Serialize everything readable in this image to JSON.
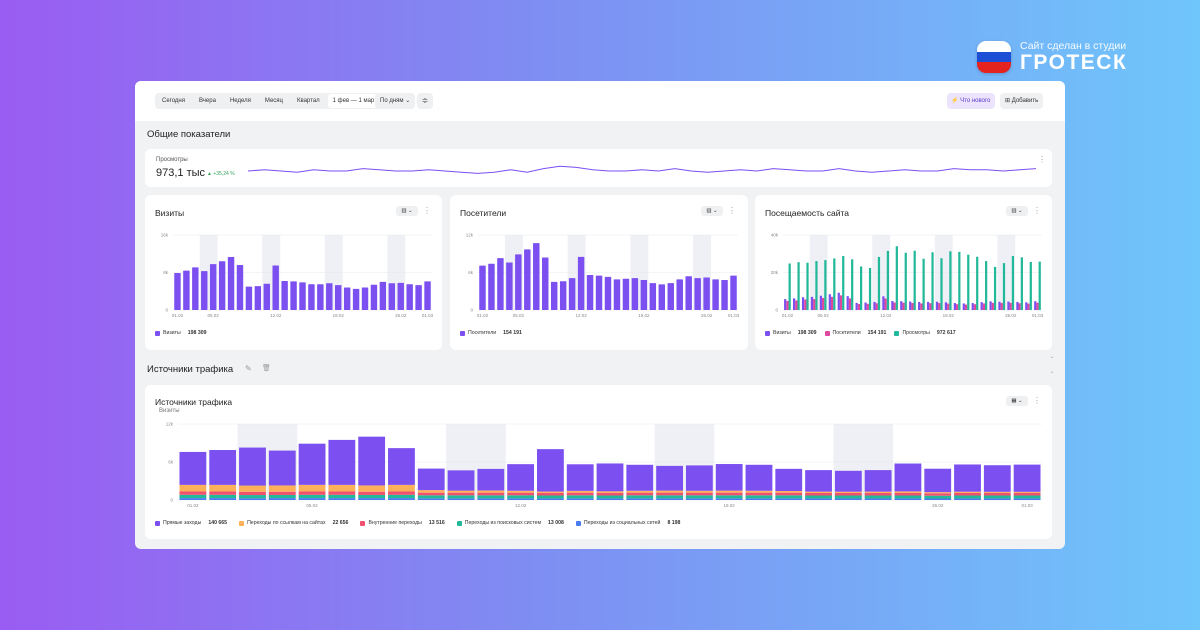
{
  "brand": {
    "subtitle": "Сайт сделан в студии",
    "name": "ГРОТЕСК",
    "flag_colors": [
      "#ffffff",
      "#1d4fd6",
      "#e4231f"
    ]
  },
  "toolbar": {
    "periods": [
      "Сегодня",
      "Вчера",
      "Неделя",
      "Месяц",
      "Квартал"
    ],
    "date_range": "1 фев — 1 мар",
    "grouping": "По дням",
    "settings_icon": "sliders-icon",
    "whats_new_label": "Что нового",
    "whats_new_icon": "lightning-icon",
    "add_label": "Добавить",
    "add_icon": "grid-icon"
  },
  "overview": {
    "title": "Общие показатели",
    "views": {
      "label": "Просмотры",
      "value": "973,1 тыс",
      "delta": "▲ +35,24 %"
    }
  },
  "colors": {
    "purple": "#7b4ff0",
    "magenta": "#e0479e",
    "teal": "#22b89a",
    "orange": "#ffb05a",
    "red": "#f0516e",
    "blue": "#4b7bf0",
    "weekend": "#eef0f5"
  },
  "sparkline": [
    30,
    31,
    30,
    29,
    31,
    30,
    30,
    32,
    31,
    30,
    30,
    31,
    30,
    29,
    28,
    29,
    31,
    29,
    32,
    34,
    33,
    31,
    30,
    30,
    31,
    30,
    32,
    30,
    29,
    30,
    31,
    30,
    32,
    31,
    30,
    30,
    32,
    30,
    29,
    30,
    31,
    30,
    30,
    32,
    31,
    31,
    30,
    31,
    32
  ],
  "sources_section": {
    "title": "Источники трафика",
    "edit_icon": "pencil-icon",
    "delete_icon": "trash-icon"
  },
  "chart_data": [
    {
      "type": "bar",
      "title": "Визиты",
      "x": [
        "01.02",
        "02.02",
        "03.02",
        "04.02",
        "05.02",
        "06.02",
        "07.02",
        "08.02",
        "09.02",
        "10.02",
        "11.02",
        "12.02",
        "13.02",
        "14.02",
        "15.02",
        "16.02",
        "17.02",
        "18.02",
        "19.02",
        "20.02",
        "21.02",
        "22.02",
        "23.02",
        "24.02",
        "25.02",
        "26.02",
        "27.02",
        "28.02",
        "01.03"
      ],
      "x_ticks": [
        "01.02",
        "05.02",
        "12.02",
        "19.02",
        "26.02",
        "01.03"
      ],
      "y_ticks": [
        "0",
        "8k",
        "16k"
      ],
      "ylim": [
        0,
        16000
      ],
      "series": [
        {
          "name": "Визиты",
          "values": [
            7900,
            8400,
            9100,
            8300,
            9800,
            10400,
            11300,
            9600,
            5000,
            5100,
            5600,
            9500,
            6200,
            6100,
            5900,
            5500,
            5500,
            5700,
            5300,
            4800,
            4500,
            4800,
            5400,
            6000,
            5700,
            5800,
            5500,
            5300,
            6100
          ]
        }
      ],
      "legend": [
        {
          "name": "Визиты",
          "total": "198 309"
        }
      ],
      "weekends": [
        [
          3,
          4
        ],
        [
          10,
          11
        ],
        [
          17,
          18
        ],
        [
          24,
          25
        ]
      ]
    },
    {
      "type": "bar",
      "title": "Посетители",
      "x": [
        "01.02",
        "02.02",
        "03.02",
        "04.02",
        "05.02",
        "06.02",
        "07.02",
        "08.02",
        "09.02",
        "10.02",
        "11.02",
        "12.02",
        "13.02",
        "14.02",
        "15.02",
        "16.02",
        "17.02",
        "18.02",
        "19.02",
        "20.02",
        "21.02",
        "22.02",
        "23.02",
        "24.02",
        "25.02",
        "26.02",
        "27.02",
        "28.02",
        "01.03"
      ],
      "x_ticks": [
        "01.02",
        "05.02",
        "12.02",
        "19.02",
        "26.02",
        "01.03"
      ],
      "y_ticks": [
        "0",
        "6k",
        "12k"
      ],
      "ylim": [
        0,
        12000
      ],
      "series": [
        {
          "name": "Посетители",
          "values": [
            7100,
            7400,
            8300,
            7600,
            8900,
            9700,
            10700,
            8400,
            4500,
            4600,
            5100,
            8500,
            5600,
            5500,
            5300,
            4900,
            5000,
            5100,
            4800,
            4300,
            4100,
            4300,
            4900,
            5400,
            5100,
            5200,
            4900,
            4800,
            5500
          ]
        }
      ],
      "legend": [
        {
          "name": "Посетители",
          "total": "154 191"
        }
      ],
      "weekends": [
        [
          3,
          4
        ],
        [
          10,
          11
        ],
        [
          17,
          18
        ],
        [
          24,
          25
        ]
      ]
    },
    {
      "type": "bar",
      "title": "Посещаемость сайта",
      "x": [
        "01.02",
        "02.02",
        "03.02",
        "04.02",
        "05.02",
        "06.02",
        "07.02",
        "08.02",
        "09.02",
        "10.02",
        "11.02",
        "12.02",
        "13.02",
        "14.02",
        "15.02",
        "16.02",
        "17.02",
        "18.02",
        "19.02",
        "20.02",
        "21.02",
        "22.02",
        "23.02",
        "24.02",
        "25.02",
        "26.02",
        "27.02",
        "28.02",
        "01.03"
      ],
      "x_ticks": [
        "01.02",
        "05.02",
        "12.02",
        "19.02",
        "26.02",
        "01.03"
      ],
      "y_ticks": [
        "0",
        "20k",
        "40k"
      ],
      "ylim": [
        0,
        40000
      ],
      "series": [
        {
          "name": "Визиты",
          "values": [
            5800,
            6200,
            6800,
            7000,
            7600,
            8400,
            9200,
            7400,
            3800,
            4000,
            4300,
            7300,
            4800,
            4700,
            4500,
            4300,
            4300,
            4400,
            4100,
            3700,
            3500,
            3700,
            4200,
            4600,
            4400,
            4500,
            4300,
            4100,
            4700
          ]
        },
        {
          "name": "Посетители",
          "values": [
            4800,
            5100,
            5600,
            5800,
            6400,
            7000,
            7800,
            6200,
            3200,
            3300,
            3600,
            6100,
            4000,
            3900,
            3700,
            3500,
            3600,
            3700,
            3400,
            3100,
            2900,
            3100,
            3500,
            3800,
            3700,
            3800,
            3600,
            3400,
            3900
          ]
        },
        {
          "name": "Просмотры",
          "values": [
            24800,
            25500,
            25200,
            26100,
            26600,
            27500,
            28800,
            27000,
            23200,
            22400,
            28300,
            31500,
            34000,
            30500,
            31600,
            27300,
            30800,
            27600,
            31300,
            31000,
            29500,
            28400,
            26100,
            23000,
            25000,
            28800,
            28100,
            25600,
            25800
          ]
        }
      ],
      "legend": [
        {
          "name": "Визиты",
          "total": "198 309"
        },
        {
          "name": "Посетители",
          "total": "154 191"
        },
        {
          "name": "Просмотры",
          "total": "972 617"
        }
      ],
      "weekends": [
        [
          3,
          4
        ],
        [
          10,
          11
        ],
        [
          17,
          18
        ],
        [
          24,
          25
        ]
      ]
    },
    {
      "type": "bar",
      "title": "Источники трафика",
      "subtitle": "Визиты",
      "stacked": true,
      "x": [
        "01.02",
        "02.02",
        "03.02",
        "04.02",
        "05.02",
        "06.02",
        "07.02",
        "08.02",
        "09.02",
        "10.02",
        "11.02",
        "12.02",
        "13.02",
        "14.02",
        "15.02",
        "16.02",
        "17.02",
        "18.02",
        "19.02",
        "20.02",
        "21.02",
        "22.02",
        "23.02",
        "24.02",
        "25.02",
        "26.02",
        "27.02",
        "28.02",
        "01.03"
      ],
      "x_ticks": [
        "01.02",
        "05.02",
        "12.02",
        "19.02",
        "26.02",
        "01.03"
      ],
      "y_ticks": [
        "0",
        "6k",
        "12k"
      ],
      "ylim": [
        0,
        12000
      ],
      "series": [
        {
          "name": "Прямые заходы",
          "values": [
            5200,
            5500,
            6000,
            5500,
            6500,
            7100,
            7700,
            5800,
            3400,
            3200,
            3400,
            4200,
            6700,
            4200,
            4400,
            4100,
            3900,
            4000,
            4200,
            4100,
            3500,
            3400,
            3300,
            3400,
            4400,
            3700,
            4300,
            4200,
            4300
          ]
        },
        {
          "name": "Переходы по ссылкам на сайтах",
          "values": [
            1050,
            1050,
            1000,
            1000,
            1050,
            1050,
            1000,
            1050,
            400,
            320,
            350,
            300,
            220,
            280,
            260,
            300,
            330,
            300,
            320,
            300,
            260,
            210,
            200,
            210,
            250,
            180,
            200,
            180,
            180
          ]
        },
        {
          "name": "Внутренние переходы",
          "values": [
            520,
            520,
            500,
            500,
            520,
            520,
            500,
            520,
            420,
            420,
            420,
            420,
            400,
            420,
            400,
            420,
            420,
            420,
            420,
            420,
            420,
            400,
            400,
            400,
            400,
            380,
            400,
            400,
            400
          ]
        },
        {
          "name": "Переходы из поисковых систем",
          "values": [
            520,
            520,
            500,
            500,
            520,
            520,
            500,
            520,
            480,
            480,
            480,
            480,
            460,
            480,
            460,
            480,
            480,
            480,
            480,
            480,
            480,
            460,
            460,
            460,
            460,
            440,
            460,
            460,
            460
          ]
        },
        {
          "name": "Переходы из социальных сетей",
          "values": [
            300,
            300,
            280,
            300,
            300,
            300,
            300,
            300,
            260,
            260,
            260,
            260,
            250,
            260,
            250,
            260,
            260,
            260,
            260,
            260,
            260,
            250,
            250,
            250,
            250,
            240,
            250,
            250,
            250
          ]
        }
      ],
      "legend": [
        {
          "name": "Прямые заходы",
          "total": "140 665"
        },
        {
          "name": "Переходы по ссылкам на сайтах",
          "total": "22 656"
        },
        {
          "name": "Внутренние переходы",
          "total": "13 516"
        },
        {
          "name": "Переходы из поисковых систем",
          "total": "13 008"
        },
        {
          "name": "Переходы из социальных сетей",
          "total": "8 198"
        }
      ],
      "weekends": [
        [
          2,
          3
        ],
        [
          9,
          10
        ],
        [
          16,
          17
        ],
        [
          22,
          23
        ]
      ]
    }
  ]
}
